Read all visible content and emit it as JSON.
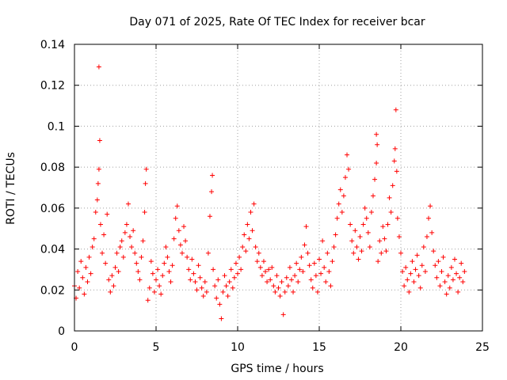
{
  "chart_data": {
    "type": "scatter",
    "title": "Day 071 of 2025, Rate Of TEC Index for receiver bcar",
    "xlabel": "GPS time / hours",
    "ylabel": "ROTI / TECUs",
    "xlim": [
      0,
      25
    ],
    "ylim": [
      0,
      0.14
    ],
    "xticks": [
      "0",
      "5",
      "10",
      "15",
      "20",
      "25"
    ],
    "yticks": [
      "0",
      "0.02",
      "0.04",
      "0.06",
      "0.08",
      "0.1",
      "0.12",
      "0.14"
    ],
    "grid": true,
    "marker": "+",
    "color": "#ff0000",
    "points": [
      [
        0.0,
        0.022
      ],
      [
        0.1,
        0.016
      ],
      [
        0.2,
        0.029
      ],
      [
        0.3,
        0.021
      ],
      [
        0.4,
        0.034
      ],
      [
        0.5,
        0.026
      ],
      [
        0.6,
        0.018
      ],
      [
        0.7,
        0.031
      ],
      [
        0.8,
        0.024
      ],
      [
        0.9,
        0.036
      ],
      [
        1.0,
        0.028
      ],
      [
        1.1,
        0.041
      ],
      [
        1.2,
        0.045
      ],
      [
        1.3,
        0.058
      ],
      [
        1.4,
        0.064
      ],
      [
        1.45,
        0.072
      ],
      [
        1.5,
        0.079
      ],
      [
        1.55,
        0.093
      ],
      [
        1.5,
        0.129
      ],
      [
        1.6,
        0.052
      ],
      [
        1.7,
        0.038
      ],
      [
        1.8,
        0.047
      ],
      [
        1.9,
        0.033
      ],
      [
        2.0,
        0.057
      ],
      [
        2.1,
        0.025
      ],
      [
        2.2,
        0.019
      ],
      [
        2.3,
        0.027
      ],
      [
        2.4,
        0.022
      ],
      [
        2.5,
        0.031
      ],
      [
        2.6,
        0.038
      ],
      [
        2.7,
        0.029
      ],
      [
        2.8,
        0.041
      ],
      [
        2.9,
        0.044
      ],
      [
        3.0,
        0.036
      ],
      [
        3.1,
        0.048
      ],
      [
        3.2,
        0.052
      ],
      [
        3.3,
        0.062
      ],
      [
        3.4,
        0.046
      ],
      [
        3.5,
        0.041
      ],
      [
        3.6,
        0.049
      ],
      [
        3.7,
        0.038
      ],
      [
        3.8,
        0.033
      ],
      [
        3.9,
        0.029
      ],
      [
        4.0,
        0.025
      ],
      [
        4.1,
        0.036
      ],
      [
        4.2,
        0.044
      ],
      [
        4.3,
        0.058
      ],
      [
        4.35,
        0.072
      ],
      [
        4.4,
        0.079
      ],
      [
        4.5,
        0.015
      ],
      [
        4.6,
        0.021
      ],
      [
        4.7,
        0.034
      ],
      [
        4.8,
        0.028
      ],
      [
        4.9,
        0.019
      ],
      [
        5.0,
        0.025
      ],
      [
        5.1,
        0.03
      ],
      [
        5.2,
        0.022
      ],
      [
        5.3,
        0.018
      ],
      [
        5.4,
        0.027
      ],
      [
        5.5,
        0.033
      ],
      [
        5.6,
        0.041
      ],
      [
        5.7,
        0.036
      ],
      [
        5.8,
        0.029
      ],
      [
        5.9,
        0.024
      ],
      [
        6.0,
        0.032
      ],
      [
        6.1,
        0.045
      ],
      [
        6.2,
        0.055
      ],
      [
        6.3,
        0.061
      ],
      [
        6.4,
        0.049
      ],
      [
        6.5,
        0.042
      ],
      [
        6.6,
        0.038
      ],
      [
        6.7,
        0.051
      ],
      [
        6.8,
        0.044
      ],
      [
        6.9,
        0.036
      ],
      [
        7.0,
        0.03
      ],
      [
        7.1,
        0.025
      ],
      [
        7.2,
        0.035
      ],
      [
        7.3,
        0.028
      ],
      [
        7.4,
        0.024
      ],
      [
        7.5,
        0.02
      ],
      [
        7.6,
        0.032
      ],
      [
        7.7,
        0.026
      ],
      [
        7.8,
        0.021
      ],
      [
        7.9,
        0.017
      ],
      [
        8.0,
        0.024
      ],
      [
        8.1,
        0.019
      ],
      [
        8.2,
        0.038
      ],
      [
        8.3,
        0.056
      ],
      [
        8.4,
        0.068
      ],
      [
        8.45,
        0.076
      ],
      [
        8.5,
        0.03
      ],
      [
        8.6,
        0.022
      ],
      [
        8.7,
        0.016
      ],
      [
        8.8,
        0.025
      ],
      [
        8.9,
        0.013
      ],
      [
        9.0,
        0.006
      ],
      [
        9.1,
        0.019
      ],
      [
        9.2,
        0.027
      ],
      [
        9.3,
        0.022
      ],
      [
        9.4,
        0.017
      ],
      [
        9.5,
        0.024
      ],
      [
        9.6,
        0.03
      ],
      [
        9.7,
        0.021
      ],
      [
        9.8,
        0.026
      ],
      [
        9.9,
        0.033
      ],
      [
        10.0,
        0.028
      ],
      [
        10.1,
        0.036
      ],
      [
        10.2,
        0.03
      ],
      [
        10.3,
        0.041
      ],
      [
        10.4,
        0.047
      ],
      [
        10.5,
        0.039
      ],
      [
        10.6,
        0.052
      ],
      [
        10.7,
        0.045
      ],
      [
        10.8,
        0.058
      ],
      [
        10.9,
        0.049
      ],
      [
        11.0,
        0.062
      ],
      [
        11.1,
        0.041
      ],
      [
        11.2,
        0.034
      ],
      [
        11.3,
        0.038
      ],
      [
        11.4,
        0.031
      ],
      [
        11.5,
        0.027
      ],
      [
        11.6,
        0.034
      ],
      [
        11.7,
        0.029
      ],
      [
        11.8,
        0.024
      ],
      [
        11.9,
        0.03
      ],
      [
        12.0,
        0.025
      ],
      [
        12.1,
        0.031
      ],
      [
        12.2,
        0.022
      ],
      [
        12.3,
        0.019
      ],
      [
        12.4,
        0.027
      ],
      [
        12.5,
        0.021
      ],
      [
        12.6,
        0.017
      ],
      [
        12.7,
        0.024
      ],
      [
        12.8,
        0.008
      ],
      [
        12.9,
        0.019
      ],
      [
        13.0,
        0.026
      ],
      [
        13.1,
        0.022
      ],
      [
        13.2,
        0.031
      ],
      [
        13.3,
        0.025
      ],
      [
        13.4,
        0.019
      ],
      [
        13.5,
        0.027
      ],
      [
        13.6,
        0.033
      ],
      [
        13.7,
        0.024
      ],
      [
        13.8,
        0.03
      ],
      [
        13.9,
        0.036
      ],
      [
        14.0,
        0.029
      ],
      [
        14.1,
        0.042
      ],
      [
        14.2,
        0.051
      ],
      [
        14.3,
        0.038
      ],
      [
        14.4,
        0.032
      ],
      [
        14.5,
        0.025
      ],
      [
        14.6,
        0.021
      ],
      [
        14.7,
        0.033
      ],
      [
        14.8,
        0.027
      ],
      [
        14.9,
        0.019
      ],
      [
        15.0,
        0.035
      ],
      [
        15.1,
        0.028
      ],
      [
        15.2,
        0.044
      ],
      [
        15.3,
        0.031
      ],
      [
        15.4,
        0.024
      ],
      [
        15.5,
        0.038
      ],
      [
        15.6,
        0.029
      ],
      [
        15.7,
        0.022
      ],
      [
        15.8,
        0.034
      ],
      [
        15.9,
        0.041
      ],
      [
        16.0,
        0.047
      ],
      [
        16.1,
        0.055
      ],
      [
        16.2,
        0.062
      ],
      [
        16.3,
        0.069
      ],
      [
        16.4,
        0.058
      ],
      [
        16.5,
        0.066
      ],
      [
        16.6,
        0.075
      ],
      [
        16.7,
        0.086
      ],
      [
        16.8,
        0.079
      ],
      [
        16.9,
        0.052
      ],
      [
        17.0,
        0.044
      ],
      [
        17.1,
        0.038
      ],
      [
        17.2,
        0.049
      ],
      [
        17.3,
        0.041
      ],
      [
        17.4,
        0.035
      ],
      [
        17.5,
        0.046
      ],
      [
        17.6,
        0.039
      ],
      [
        17.7,
        0.052
      ],
      [
        17.8,
        0.06
      ],
      [
        17.9,
        0.055
      ],
      [
        18.0,
        0.048
      ],
      [
        18.1,
        0.041
      ],
      [
        18.2,
        0.058
      ],
      [
        18.3,
        0.066
      ],
      [
        18.4,
        0.074
      ],
      [
        18.5,
        0.082
      ],
      [
        18.55,
        0.091
      ],
      [
        18.5,
        0.096
      ],
      [
        18.6,
        0.034
      ],
      [
        18.7,
        0.044
      ],
      [
        18.8,
        0.038
      ],
      [
        18.9,
        0.051
      ],
      [
        19.0,
        0.045
      ],
      [
        19.1,
        0.039
      ],
      [
        19.2,
        0.052
      ],
      [
        19.3,
        0.065
      ],
      [
        19.4,
        0.058
      ],
      [
        19.5,
        0.071
      ],
      [
        19.6,
        0.083
      ],
      [
        19.65,
        0.089
      ],
      [
        19.7,
        0.108
      ],
      [
        19.75,
        0.078
      ],
      [
        19.8,
        0.055
      ],
      [
        19.9,
        0.046
      ],
      [
        20.0,
        0.038
      ],
      [
        20.1,
        0.029
      ],
      [
        20.2,
        0.022
      ],
      [
        20.3,
        0.031
      ],
      [
        20.4,
        0.025
      ],
      [
        20.5,
        0.019
      ],
      [
        20.6,
        0.028
      ],
      [
        20.7,
        0.034
      ],
      [
        20.8,
        0.024
      ],
      [
        20.9,
        0.03
      ],
      [
        21.0,
        0.037
      ],
      [
        21.1,
        0.027
      ],
      [
        21.2,
        0.021
      ],
      [
        21.3,
        0.032
      ],
      [
        21.4,
        0.041
      ],
      [
        21.5,
        0.029
      ],
      [
        21.6,
        0.046
      ],
      [
        21.7,
        0.055
      ],
      [
        21.8,
        0.061
      ],
      [
        21.9,
        0.048
      ],
      [
        22.0,
        0.039
      ],
      [
        22.1,
        0.032
      ],
      [
        22.2,
        0.026
      ],
      [
        22.3,
        0.034
      ],
      [
        22.4,
        0.022
      ],
      [
        22.5,
        0.029
      ],
      [
        22.6,
        0.036
      ],
      [
        22.7,
        0.024
      ],
      [
        22.8,
        0.018
      ],
      [
        22.9,
        0.027
      ],
      [
        23.0,
        0.021
      ],
      [
        23.1,
        0.031
      ],
      [
        23.2,
        0.025
      ],
      [
        23.3,
        0.035
      ],
      [
        23.4,
        0.028
      ],
      [
        23.5,
        0.019
      ],
      [
        23.6,
        0.026
      ],
      [
        23.7,
        0.033
      ],
      [
        23.8,
        0.024
      ],
      [
        23.9,
        0.029
      ]
    ]
  }
}
